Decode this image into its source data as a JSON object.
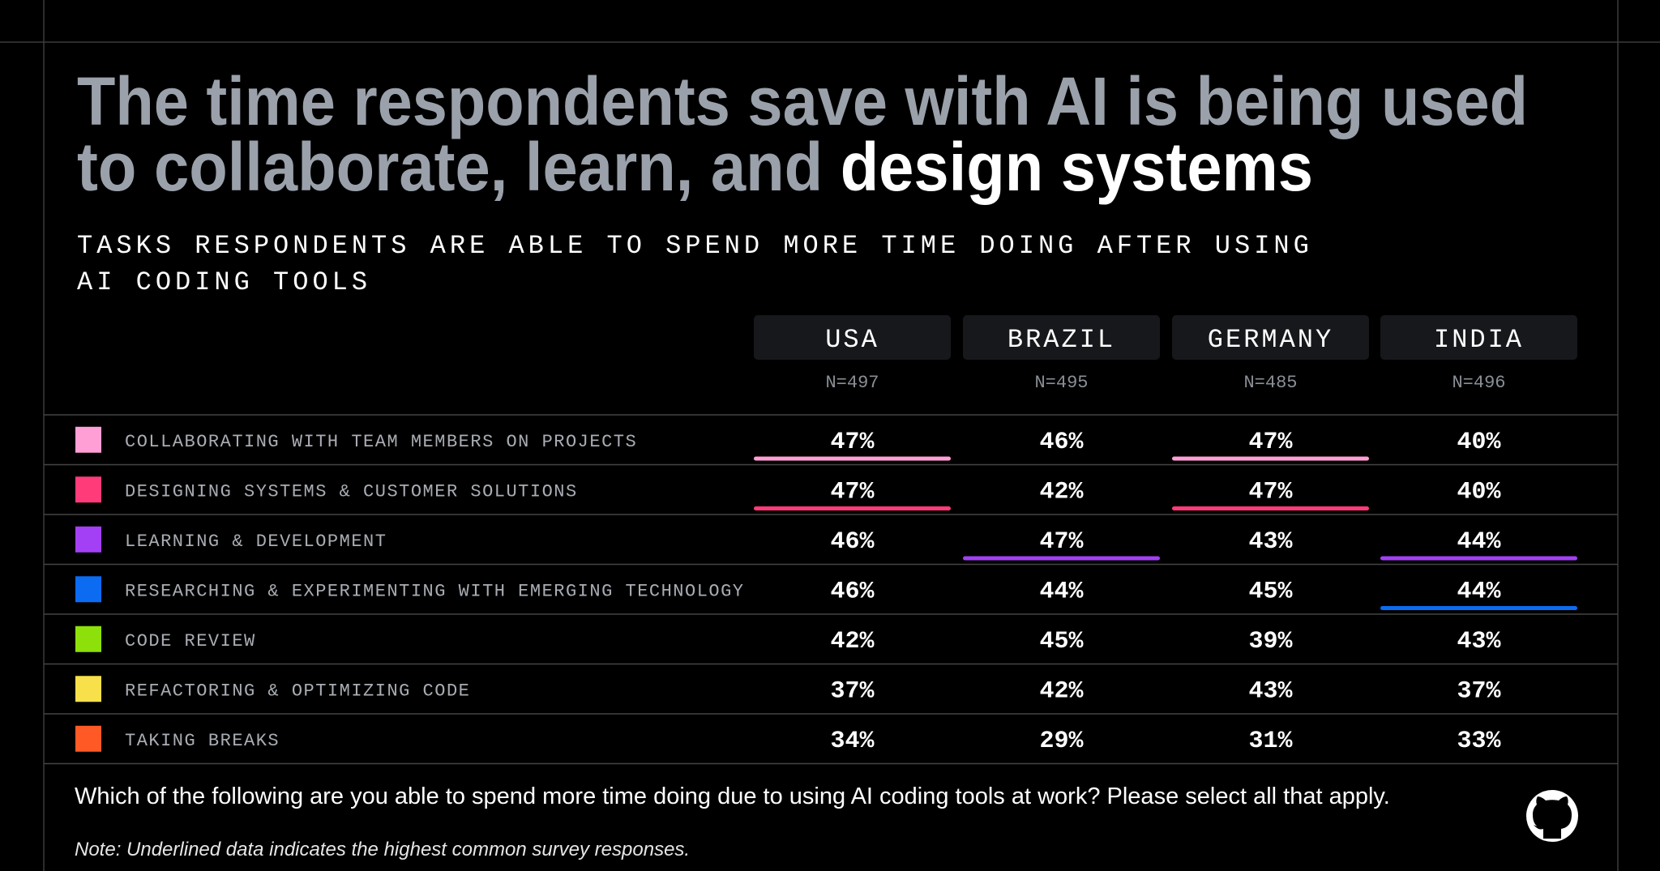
{
  "title": {
    "lines": [
      "The time respondents save with AI is being used",
      "to collaborate, learn, and"
    ],
    "emphasis": "design systems"
  },
  "subtitle": [
    "TASKS RESPONDENTS ARE ABLE TO SPEND MORE TIME DOING AFTER USING",
    "AI CODING TOOLS"
  ],
  "table": {
    "columns": [
      {
        "name": "USA",
        "n": "N=497"
      },
      {
        "name": "BRAZIL",
        "n": "N=495"
      },
      {
        "name": "GERMANY",
        "n": "N=485"
      },
      {
        "name": "INDIA",
        "n": "N=496"
      }
    ],
    "rows": [
      {
        "label": "COLLABORATING WITH TEAM MEMBERS ON PROJECTS",
        "color": "#ff9fd6",
        "cells": [
          {
            "text": "47%",
            "underlined": true
          },
          {
            "text": "46%",
            "underlined": false
          },
          {
            "text": "47%",
            "underlined": true
          },
          {
            "text": "40%",
            "underlined": false
          }
        ]
      },
      {
        "label": "DESIGNING SYSTEMS & CUSTOMER SOLUTIONS",
        "color": "#ff3b7a",
        "cells": [
          {
            "text": "47%",
            "underlined": true
          },
          {
            "text": "42%",
            "underlined": false
          },
          {
            "text": "47%",
            "underlined": true
          },
          {
            "text": "40%",
            "underlined": false
          }
        ]
      },
      {
        "label": "LEARNING & DEVELOPMENT",
        "color": "#a340f5",
        "cells": [
          {
            "text": "46%",
            "underlined": false
          },
          {
            "text": "47%",
            "underlined": true
          },
          {
            "text": "43%",
            "underlined": false
          },
          {
            "text": "44%",
            "underlined": true
          }
        ]
      },
      {
        "label": "RESEARCHING & EXPERIMENTING WITH EMERGING TECHNOLOGY",
        "color": "#0b6cf2",
        "cells": [
          {
            "text": "46%",
            "underlined": false
          },
          {
            "text": "44%",
            "underlined": false
          },
          {
            "text": "45%",
            "underlined": false
          },
          {
            "text": "44%",
            "underlined": true
          }
        ]
      },
      {
        "label": "CODE REVIEW",
        "color": "#8ee00a",
        "cells": [
          {
            "text": "42%",
            "underlined": false
          },
          {
            "text": "45%",
            "underlined": false
          },
          {
            "text": "39%",
            "underlined": false
          },
          {
            "text": "43%",
            "underlined": false
          }
        ]
      },
      {
        "label": "REFACTORING & OPTIMIZING CODE",
        "color": "#f7e04a",
        "cells": [
          {
            "text": "37%",
            "underlined": false
          },
          {
            "text": "42%",
            "underlined": false
          },
          {
            "text": "43%",
            "underlined": false
          },
          {
            "text": "37%",
            "underlined": false
          }
        ]
      },
      {
        "label": "TAKING BREAKS",
        "color": "#ff5a26",
        "cells": [
          {
            "text": "34%",
            "underlined": false
          },
          {
            "text": "29%",
            "underlined": false
          },
          {
            "text": "31%",
            "underlined": false
          },
          {
            "text": "33%",
            "underlined": false
          }
        ]
      }
    ]
  },
  "question": "Which of the following are you able to spend more time doing due to using AI coding tools at work? Please select all that apply.",
  "note": "Note: Underlined data indicates the highest common survey responses."
}
